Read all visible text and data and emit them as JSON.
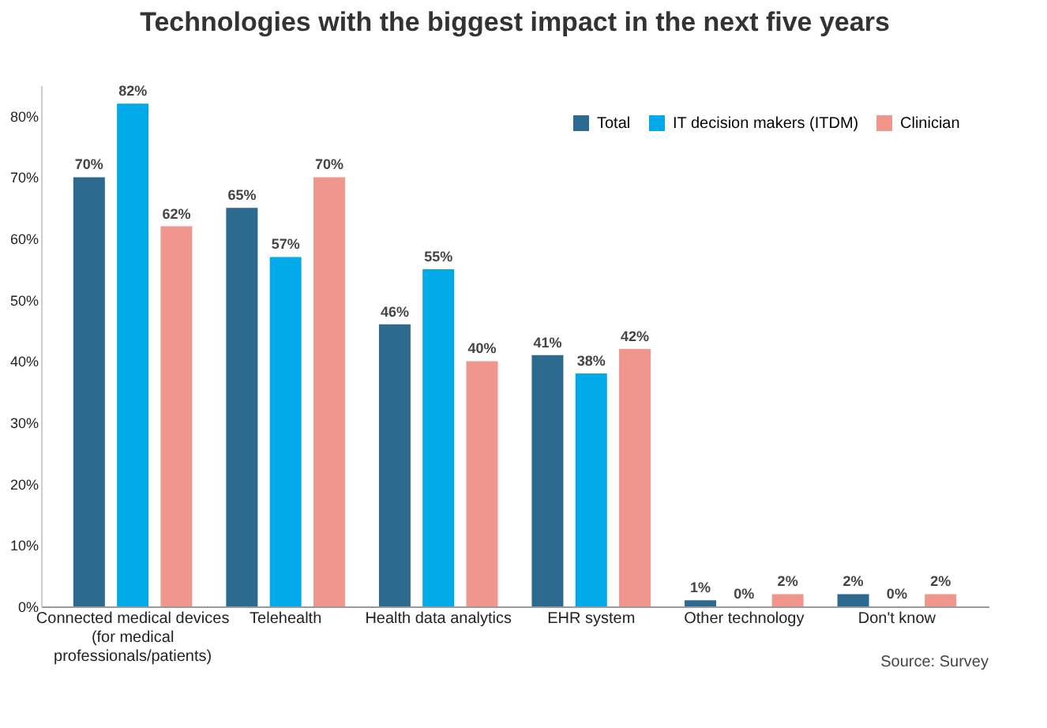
{
  "chart_data": {
    "type": "bar",
    "title": "Technologies with the biggest impact in the next five years",
    "categories": [
      "Connected medical devices (for medical professionals/patients)",
      "Telehealth",
      "Health data analytics",
      "EHR system",
      "Other technology",
      "Don't know"
    ],
    "series": [
      {
        "name": "Total",
        "color": "#2d6a8f",
        "values": [
          70,
          65,
          46,
          41,
          1,
          2
        ],
        "value_labels": [
          "70%",
          "65%",
          "46%",
          "41%",
          "1%",
          "2%"
        ]
      },
      {
        "name": "IT decision makers (ITDM)",
        "color": "#00a9e8",
        "values": [
          82,
          57,
          55,
          38,
          0,
          0
        ],
        "value_labels": [
          "82%",
          "57%",
          "55%",
          "38%",
          "0%",
          "0%"
        ]
      },
      {
        "name": "Clinician",
        "color": "#f0968c",
        "values": [
          62,
          70,
          40,
          42,
          2,
          2
        ],
        "value_labels": [
          "62%",
          "70%",
          "40%",
          "42%",
          "2%",
          "2%"
        ]
      }
    ],
    "ylim": [
      0,
      85
    ],
    "yticks": [
      {
        "value": 0,
        "label": "0%"
      },
      {
        "value": 10,
        "label": "10%"
      },
      {
        "value": 20,
        "label": "20%"
      },
      {
        "value": 30,
        "label": "30%"
      },
      {
        "value": 40,
        "label": "40%"
      },
      {
        "value": 50,
        "label": "50%"
      },
      {
        "value": 60,
        "label": "60%"
      },
      {
        "value": 70,
        "label": "70%"
      },
      {
        "value": 80,
        "label": "80%"
      }
    ],
    "grid": false,
    "legend": "top right",
    "annotations": [
      "Source: Survey"
    ]
  }
}
